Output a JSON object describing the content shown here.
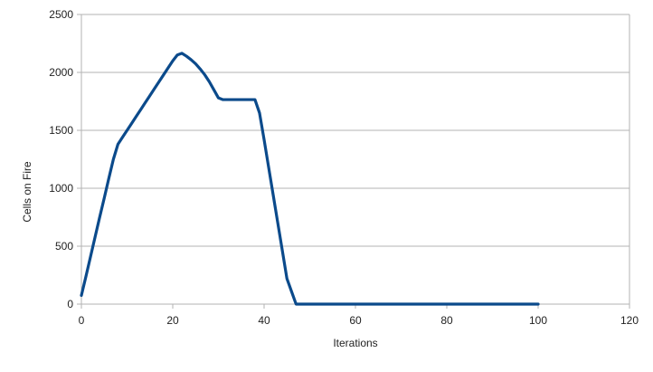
{
  "chart_data": {
    "type": "line",
    "title": "",
    "xlabel": "Iterations",
    "ylabel": "Cells on Fire",
    "xlim": [
      0,
      120
    ],
    "ylim": [
      0,
      2500
    ],
    "x_ticks": [
      0,
      20,
      40,
      60,
      80,
      100,
      120
    ],
    "y_ticks": [
      0,
      500,
      1000,
      1500,
      2000,
      2500
    ],
    "grid": "horizontal",
    "legend": "none",
    "series": [
      {
        "color": "#0b4a8b",
        "points": [
          [
            0,
            75
          ],
          [
            1,
            240
          ],
          [
            2,
            410
          ],
          [
            3,
            580
          ],
          [
            4,
            750
          ],
          [
            5,
            915
          ],
          [
            6,
            1085
          ],
          [
            7,
            1250
          ],
          [
            8,
            1380
          ],
          [
            9,
            1440
          ],
          [
            10,
            1500
          ],
          [
            11,
            1560
          ],
          [
            12,
            1620
          ],
          [
            13,
            1680
          ],
          [
            14,
            1740
          ],
          [
            15,
            1800
          ],
          [
            16,
            1860
          ],
          [
            17,
            1920
          ],
          [
            18,
            1980
          ],
          [
            19,
            2040
          ],
          [
            20,
            2100
          ],
          [
            21,
            2150
          ],
          [
            22,
            2165
          ],
          [
            23,
            2140
          ],
          [
            24,
            2110
          ],
          [
            25,
            2075
          ],
          [
            26,
            2030
          ],
          [
            27,
            1980
          ],
          [
            28,
            1920
          ],
          [
            29,
            1850
          ],
          [
            30,
            1780
          ],
          [
            31,
            1765
          ],
          [
            32,
            1765
          ],
          [
            33,
            1765
          ],
          [
            34,
            1765
          ],
          [
            35,
            1765
          ],
          [
            36,
            1765
          ],
          [
            37,
            1765
          ],
          [
            38,
            1765
          ],
          [
            39,
            1650
          ],
          [
            40,
            1420
          ],
          [
            41,
            1180
          ],
          [
            42,
            940
          ],
          [
            43,
            700
          ],
          [
            44,
            460
          ],
          [
            45,
            220
          ],
          [
            46,
            110
          ],
          [
            47,
            0
          ],
          [
            48,
            0
          ],
          [
            50,
            0
          ],
          [
            55,
            0
          ],
          [
            60,
            0
          ],
          [
            65,
            0
          ],
          [
            70,
            0
          ],
          [
            75,
            0
          ],
          [
            80,
            0
          ],
          [
            85,
            0
          ],
          [
            90,
            0
          ],
          [
            95,
            0
          ],
          [
            100,
            0
          ]
        ]
      }
    ]
  }
}
